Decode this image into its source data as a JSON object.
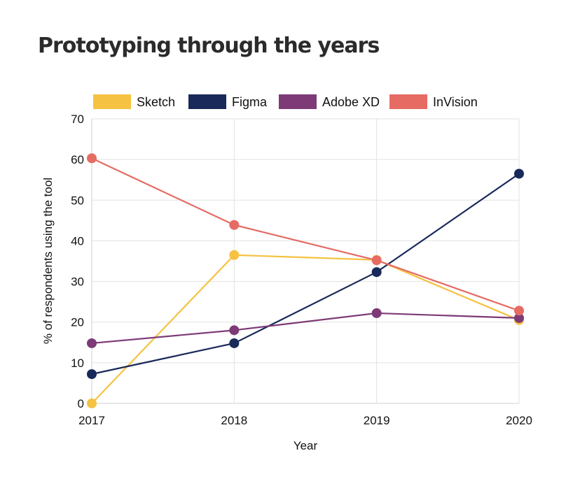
{
  "chart_data": {
    "type": "line",
    "title": "Prototyping through the years",
    "xlabel": "Year",
    "ylabel": "% of respondents using the tool",
    "categories": [
      "2017",
      "2018",
      "2019",
      "2020"
    ],
    "ylim": [
      0,
      70
    ],
    "yticks": [
      0,
      10,
      20,
      30,
      40,
      50,
      60,
      70
    ],
    "grid": true,
    "legend_position": "top",
    "series": [
      {
        "name": "Sketch",
        "color": "#f5c242",
        "values": [
          0,
          36.5,
          35.3,
          20.5
        ]
      },
      {
        "name": "Figma",
        "color": "#19295a",
        "values": [
          7.2,
          14.8,
          32.3,
          56.5
        ]
      },
      {
        "name": "Adobe XD",
        "color": "#7d3a77",
        "values": [
          14.8,
          18.0,
          22.2,
          21.0
        ]
      },
      {
        "name": "InVision",
        "color": "#e56b63",
        "values": [
          60.3,
          43.9,
          35.2,
          22.8
        ]
      }
    ]
  }
}
